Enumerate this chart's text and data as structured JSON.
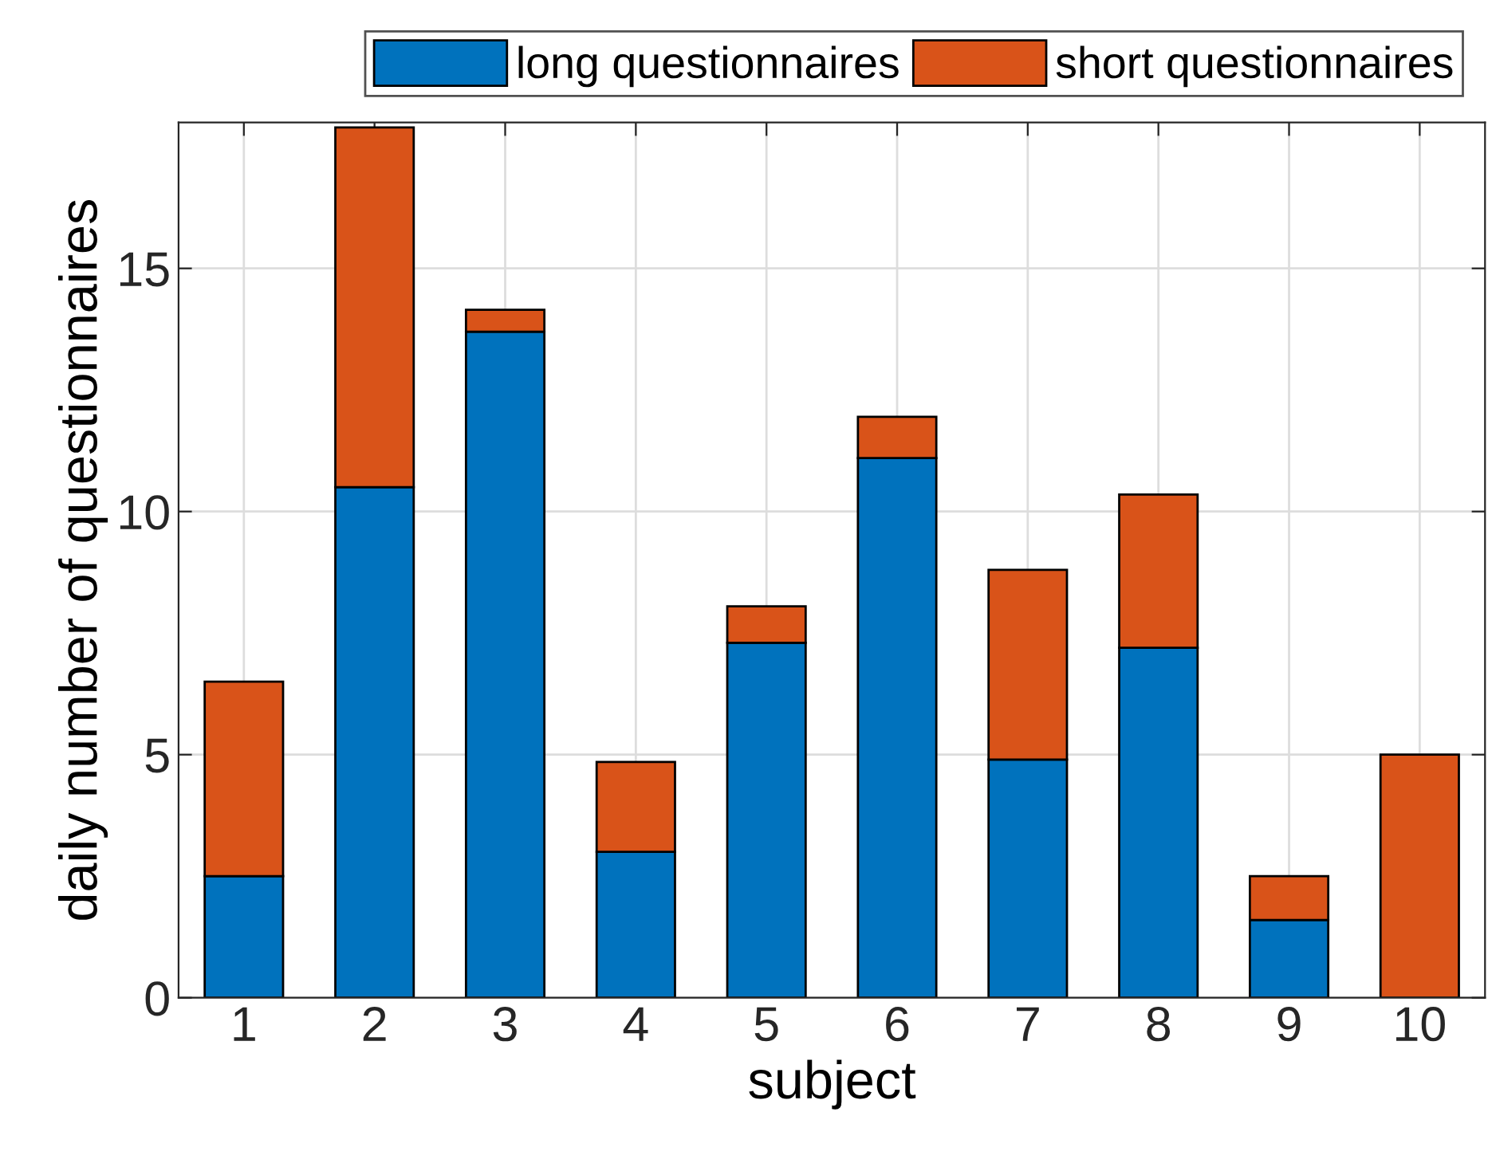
{
  "chart_data": {
    "type": "bar",
    "stacked": true,
    "xlabel": "subject",
    "ylabel": "daily number of questionnaires",
    "categories": [
      "1",
      "2",
      "3",
      "4",
      "5",
      "6",
      "7",
      "8",
      "9",
      "10"
    ],
    "series": [
      {
        "name": "long questionnaires",
        "color": "#0072bd",
        "values": [
          2.5,
          10.5,
          13.7,
          3.0,
          7.3,
          11.1,
          4.9,
          7.2,
          1.6,
          0
        ]
      },
      {
        "name": "short questionnaires",
        "color": "#d95319",
        "values": [
          4.0,
          7.4,
          0.45,
          1.85,
          0.75,
          0.85,
          3.9,
          3.15,
          0.9,
          5.0
        ]
      }
    ],
    "ylim": [
      0,
      18
    ],
    "yticks": [
      0,
      5,
      10,
      15
    ],
    "grid": true,
    "legend": "top right"
  }
}
